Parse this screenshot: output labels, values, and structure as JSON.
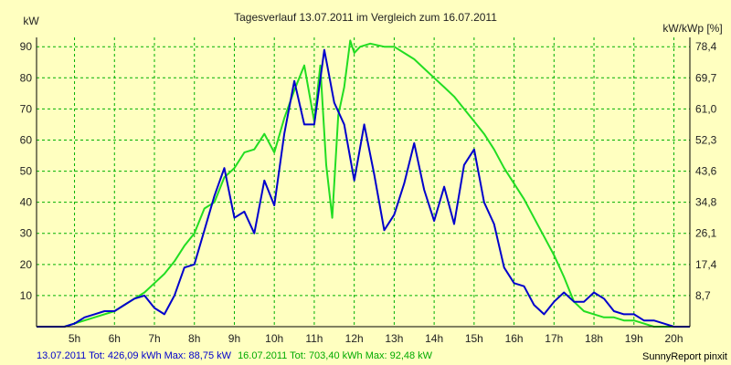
{
  "chart_data": {
    "type": "line",
    "title": "Tagesverlauf 13.07.2011 im Vergleich zum 16.07.2011",
    "ylabel_left": "kW",
    "ylabel_right": "kW/kWp [%]",
    "x_ticks": [
      "5h",
      "6h",
      "7h",
      "8h",
      "9h",
      "10h",
      "11h",
      "12h",
      "13h",
      "14h",
      "15h",
      "16h",
      "17h",
      "18h",
      "19h",
      "20h"
    ],
    "x_tick_values": [
      5,
      6,
      7,
      8,
      9,
      10,
      11,
      12,
      13,
      14,
      15,
      16,
      17,
      18,
      19,
      20
    ],
    "xlim": [
      4.05,
      20.4
    ],
    "y_ticks_left": [
      "10",
      "20",
      "30",
      "40",
      "50",
      "60",
      "70",
      "80",
      "90"
    ],
    "y_tick_values_left": [
      10,
      20,
      30,
      40,
      50,
      60,
      70,
      80,
      90
    ],
    "y_ticks_right": [
      "8,7",
      "17,4",
      "26,1",
      "34,8",
      "43,6",
      "52,3",
      "61,0",
      "69,7",
      "78,4"
    ],
    "ylim": [
      0,
      93
    ],
    "grid": true,
    "colors": {
      "series1": "#0000cc",
      "series2": "#22dd22",
      "grid": "#00b000",
      "axis": "#000000",
      "background": "#ffffc0"
    },
    "series": [
      {
        "x": [
          4.05,
          4.5,
          4.75,
          5,
          5.25,
          5.5,
          5.75,
          6,
          6.25,
          6.5,
          6.75,
          7,
          7.25,
          7.5,
          7.75,
          8,
          8.25,
          8.5,
          8.75,
          9,
          9.25,
          9.5,
          9.75,
          10,
          10.25,
          10.5,
          10.75,
          11,
          11.25,
          11.5,
          11.75,
          12,
          12.25,
          12.5,
          12.75,
          13,
          13.25,
          13.5,
          13.75,
          14,
          14.25,
          14.5,
          14.75,
          15,
          15.25,
          15.5,
          15.75,
          16,
          16.25,
          16.5,
          16.75,
          17,
          17.25,
          17.5,
          17.75,
          18,
          18.25,
          18.5,
          18.75,
          19,
          19.25,
          19.5,
          19.75,
          20,
          20.4
        ],
        "values": [
          0,
          0,
          0,
          1,
          3,
          4,
          5,
          5,
          7,
          9,
          10,
          6,
          4,
          10,
          19,
          20,
          31,
          42,
          51,
          35,
          37,
          30,
          47,
          39,
          62,
          79,
          65,
          65,
          89,
          72,
          65,
          47,
          65,
          49,
          31,
          36,
          46,
          59,
          44,
          34,
          45,
          33,
          52,
          57,
          40,
          33,
          19,
          14,
          13,
          7,
          4,
          8,
          11,
          8,
          8,
          11,
          9,
          5,
          4,
          4,
          2,
          2,
          1,
          0,
          0
        ]
      },
      {
        "x": [
          4.05,
          4.5,
          4.75,
          5,
          5.25,
          5.5,
          5.75,
          6,
          6.25,
          6.5,
          6.75,
          7,
          7.25,
          7.5,
          7.75,
          8,
          8.25,
          8.5,
          8.75,
          9,
          9.25,
          9.5,
          9.75,
          10,
          10.25,
          10.5,
          10.75,
          11,
          11.15,
          11.3,
          11.45,
          11.6,
          11.75,
          11.9,
          12,
          12.15,
          12.4,
          12.75,
          13,
          13.25,
          13.5,
          13.75,
          14,
          14.25,
          14.5,
          14.75,
          15,
          15.25,
          15.5,
          15.75,
          16,
          16.25,
          16.5,
          16.75,
          17,
          17.25,
          17.5,
          17.75,
          18,
          18.25,
          18.5,
          18.75,
          19,
          19.25,
          19.5,
          19.75,
          20,
          20.4
        ],
        "values": [
          0,
          0,
          0,
          1,
          2,
          3,
          4,
          5,
          7,
          9,
          11,
          14,
          17,
          21,
          26,
          30,
          38,
          40,
          48,
          51,
          56,
          57,
          62,
          56,
          67,
          76,
          84,
          66,
          84,
          52,
          35,
          68,
          77,
          92,
          88,
          90,
          91,
          90,
          90,
          88,
          86,
          83,
          80,
          77,
          74,
          70,
          66,
          62,
          57,
          51,
          46,
          41,
          35,
          29,
          23,
          16,
          8,
          5,
          4,
          3,
          3,
          2,
          2,
          1,
          0,
          0,
          0,
          0
        ]
      }
    ],
    "footer": {
      "series1_text": "13.07.2011 Tot: 426,09 kWh Max: 88,75 kW",
      "series2_text": "16.07.2011 Tot: 703,40 kWh Max: 92,48 kW",
      "source": "SunnyReport pinxit"
    }
  }
}
